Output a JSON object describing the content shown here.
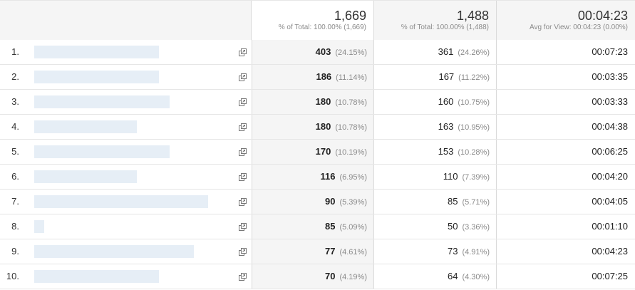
{
  "header": {
    "col1": {
      "total": "1,669",
      "sub": "% of Total: 100.00% (1,669)"
    },
    "col2": {
      "total": "1,488",
      "sub": "% of Total: 100.00% (1,488)"
    },
    "col3": {
      "total": "00:04:23",
      "sub": "Avg for View: 00:04:23 (0.00%)"
    }
  },
  "rows": [
    {
      "idx": "1.",
      "v1": "403",
      "p1": "(24.15%)",
      "v2": "361",
      "p2": "(24.26%)",
      "v3": "00:07:23",
      "redacted": 0.73
    },
    {
      "idx": "2.",
      "v1": "186",
      "p1": "(11.14%)",
      "v2": "167",
      "p2": "(11.22%)",
      "v3": "00:03:35",
      "redacted": 0.73
    },
    {
      "idx": "3.",
      "v1": "180",
      "p1": "(10.78%)",
      "v2": "160",
      "p2": "(10.75%)",
      "v3": "00:03:33",
      "redacted": 0.79
    },
    {
      "idx": "4.",
      "v1": "180",
      "p1": "(10.78%)",
      "v2": "163",
      "p2": "(10.95%)",
      "v3": "00:04:38",
      "redacted": 0.61
    },
    {
      "idx": "5.",
      "v1": "170",
      "p1": "(10.19%)",
      "v2": "153",
      "p2": "(10.28%)",
      "v3": "00:06:25",
      "redacted": 0.79
    },
    {
      "idx": "6.",
      "v1": "116",
      "p1": "(6.95%)",
      "v2": "110",
      "p2": "(7.39%)",
      "v3": "00:04:20",
      "redacted": 0.61
    },
    {
      "idx": "7.",
      "v1": "90",
      "p1": "(5.39%)",
      "v2": "85",
      "p2": "(5.71%)",
      "v3": "00:04:05",
      "redacted": 1.0
    },
    {
      "idx": "8.",
      "v1": "85",
      "p1": "(5.09%)",
      "v2": "50",
      "p2": "(3.36%)",
      "v3": "00:01:10",
      "redacted": 0.1
    },
    {
      "idx": "9.",
      "v1": "77",
      "p1": "(4.61%)",
      "v2": "73",
      "p2": "(4.91%)",
      "v3": "00:04:23",
      "redacted": 0.92
    },
    {
      "idx": "10.",
      "v1": "70",
      "p1": "(4.19%)",
      "v2": "64",
      "p2": "(4.30%)",
      "v3": "00:07:25",
      "redacted": 0.73
    }
  ],
  "icons": {
    "row_link": "open-in-new-icon"
  },
  "colors": {
    "redaction": "#dde8f3",
    "redaction_alt": "#e6eef6",
    "header_bg": "#f5f5f5",
    "border": "#dadada"
  }
}
